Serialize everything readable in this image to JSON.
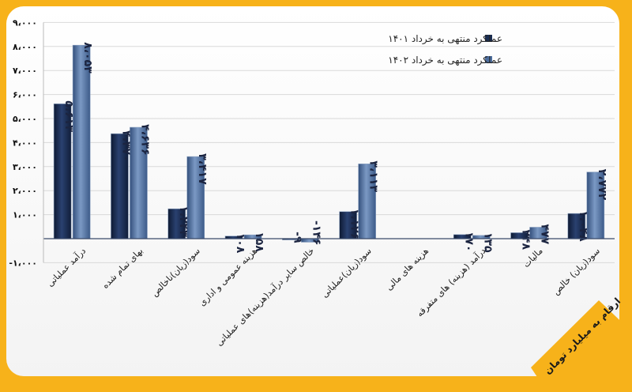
{
  "chart_data": {
    "type": "bar",
    "title": "",
    "xlabel": "",
    "ylabel": "",
    "units_note": "ارقام به میلیارد تومان",
    "ylim": [
      -1000,
      9000
    ],
    "yticks": [
      -1000,
      1000,
      2000,
      3000,
      4000,
      5000,
      6000,
      7000,
      8000,
      9000
    ],
    "ytick_labels": [
      "-۱،۰۰۰",
      "۱،۰۰۰",
      "۲،۰۰۰",
      "۳،۰۰۰",
      "۴،۰۰۰",
      "۵،۰۰۰",
      "۶،۰۰۰",
      "۷،۰۰۰",
      "۸،۰۰۰",
      "۹،۰۰۰"
    ],
    "grid": true,
    "legend_position": "top-right",
    "categories": [
      "درآمد عملیاتی",
      "بهای تمام شده",
      "سود(زیان)ناخالص",
      "هزینه عمومی و اداری",
      "خالص سایر درآمد(هزینه)های عملیاتی",
      "سود(زیان)عملیاتی",
      "هزینه های مالی",
      "درآمد (هزینه) های متفرقه",
      "مالیات",
      "سود(زیان) خالص"
    ],
    "series": [
      {
        "name": "عملکرد منتهی به خرداد ۱۴۰۱",
        "color": "#1a2d52",
        "values": [
          5613,
          4370,
          1243,
          108,
          -9,
          1126,
          null,
          170,
          248,
          1048
        ],
        "labels": [
          "۵،۶۱۳",
          "۴،۳۷۰",
          "۱،۲۴۳",
          "۱۰۸",
          "-۹",
          "۱،۱۲۶",
          "",
          "۱۷۰",
          "۲۴۸",
          "۱،۰۴۸"
        ]
      },
      {
        "name": "عملکرد منتهی به خرداد ۱۴۰۲",
        "color": "#4d6e9e",
        "values": [
          8053,
          4636,
          3417,
          158,
          -146,
          3113,
          null,
          135,
          477,
          2772
        ],
        "labels": [
          "۸،۰۵۳",
          "۴،۶۳۶",
          "۳،۴۱۷",
          "۱۵۸",
          "-۱۴۶",
          "۳،۱۱۳",
          "",
          "۱۳۵",
          "۴۷۷",
          "۲،۷۷۲"
        ]
      }
    ]
  }
}
